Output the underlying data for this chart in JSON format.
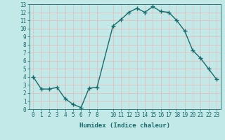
{
  "x": [
    0,
    1,
    2,
    3,
    4,
    5,
    6,
    7,
    8,
    10,
    11,
    12,
    13,
    14,
    15,
    16,
    17,
    18,
    19,
    20,
    21,
    22,
    23
  ],
  "y": [
    4,
    2.5,
    2.5,
    2.7,
    1.3,
    0.6,
    0.2,
    2.6,
    2.7,
    10.3,
    11.1,
    12.0,
    12.5,
    12.0,
    12.7,
    12.1,
    12.0,
    11.0,
    9.7,
    7.3,
    6.3,
    5.0,
    3.7
  ],
  "line_color": "#1a6b6b",
  "marker": "+",
  "marker_size": 4,
  "bg_color": "#c2e8e8",
  "grid_color": "#e8b8b8",
  "xlabel": "Humidex (Indice chaleur)",
  "xlim": [
    -0.5,
    23.5
  ],
  "ylim": [
    0,
    13
  ],
  "xticks": [
    0,
    1,
    2,
    3,
    4,
    5,
    6,
    7,
    8,
    10,
    11,
    12,
    13,
    14,
    15,
    16,
    17,
    18,
    19,
    20,
    21,
    22,
    23
  ],
  "yticks": [
    0,
    1,
    2,
    3,
    4,
    5,
    6,
    7,
    8,
    9,
    10,
    11,
    12,
    13
  ],
  "label_color": "#1a6b6b",
  "tick_color": "#1a6b6b",
  "tick_fontsize": 5.5,
  "xlabel_fontsize": 6.5,
  "linewidth": 1.0,
  "marker_linewidth": 1.0
}
